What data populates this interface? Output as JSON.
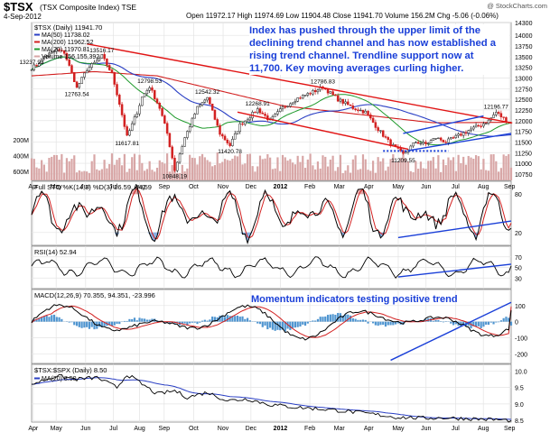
{
  "header": {
    "symbol": "$TSX",
    "name": "(TSX Composite Index) TSE",
    "date": "4-Sep-2012",
    "watermark": "@ StockCharts.com",
    "quote": "Open 11972.17  High 11974.69  Low 11904.48  Close 11941.70  Volume 156.2M  Chg -5.06 (-0.06%)"
  },
  "colors": {
    "up": "#1a1a1a",
    "down": "#d22020",
    "ma50": "#2a3fc4",
    "ma200": "#d22020",
    "ma20": "#1f9a2c",
    "annotation": "#1a3fd8",
    "volume": "#d8a6a6",
    "grid": "#e3e3e3",
    "panel_bg": "#ffffff",
    "fill_above": "#d36a6a",
    "fill_below": "#3f7fd6",
    "macd_hist": "#4f95d0"
  },
  "chart_data": [
    {
      "id": "price",
      "type": "candlestick",
      "ylim": [
        10600,
        14300
      ],
      "yticks": [
        "14300",
        "14000",
        "13750",
        "13500",
        "13250",
        "13000",
        "12750",
        "12500",
        "12250",
        "12000",
        "11750",
        "11500",
        "11250",
        "11000",
        "10750"
      ],
      "title": "$TSX (Daily) 11941.70",
      "legend": [
        "MA(50) 11738.02",
        "MA(200) 11962.52",
        "MA(20) 11970.81",
        "Volume 156,155,392"
      ],
      "waypoints": [
        [
          0,
          13237.93
        ],
        [
          2,
          13300
        ],
        [
          5,
          13500
        ],
        [
          10,
          13650
        ],
        [
          13,
          13600
        ],
        [
          17,
          12950
        ],
        [
          18,
          12763.54
        ],
        [
          22,
          13200
        ],
        [
          26,
          13400
        ],
        [
          28,
          13516.17
        ],
        [
          32,
          13100
        ],
        [
          35,
          12400
        ],
        [
          38,
          11617.81
        ],
        [
          42,
          12200
        ],
        [
          44,
          12550
        ],
        [
          47,
          12798.53
        ],
        [
          51,
          12300
        ],
        [
          54,
          11700
        ],
        [
          57,
          10848.19
        ],
        [
          61,
          11600
        ],
        [
          66,
          12300
        ],
        [
          70,
          12542.32
        ],
        [
          75,
          11700
        ],
        [
          79,
          11420.78
        ],
        [
          83,
          11900
        ],
        [
          87,
          12100
        ],
        [
          90,
          12268.91
        ],
        [
          95,
          12000
        ],
        [
          100,
          12300
        ],
        [
          105,
          12500
        ],
        [
          109,
          12600
        ],
        [
          113,
          12700
        ],
        [
          116,
          12786.83
        ],
        [
          122,
          12500
        ],
        [
          128,
          12300
        ],
        [
          133,
          12200
        ],
        [
          138,
          11800
        ],
        [
          143,
          11450
        ],
        [
          148,
          11209.55
        ],
        [
          153,
          11500
        ],
        [
          157,
          11450
        ],
        [
          161,
          11600
        ],
        [
          165,
          11500
        ],
        [
          170,
          11650
        ],
        [
          175,
          11800
        ],
        [
          179,
          11900
        ],
        [
          182,
          12000
        ],
        [
          185,
          12196.77
        ],
        [
          188,
          12050
        ],
        [
          191,
          11941.7
        ]
      ],
      "price_labels": [
        {
          "text": "13237.93",
          "i": 0,
          "v": 13237.93,
          "pos": "above"
        },
        {
          "text": "13516.17",
          "i": 28,
          "v": 13516.17,
          "pos": "above"
        },
        {
          "text": "12763.54",
          "i": 18,
          "v": 12763.54,
          "pos": "below"
        },
        {
          "text": "12798.53",
          "i": 47,
          "v": 12798.53,
          "pos": "above"
        },
        {
          "text": "11617.81",
          "i": 38,
          "v": 11617.81,
          "pos": "below"
        },
        {
          "text": "12542.32",
          "i": 70,
          "v": 12542.32,
          "pos": "above"
        },
        {
          "text": "10848.19",
          "i": 57,
          "v": 10848.19,
          "pos": "below"
        },
        {
          "text": "12268.91",
          "i": 90,
          "v": 12268.91,
          "pos": "above"
        },
        {
          "text": "11420.78",
          "i": 79,
          "v": 11420.78,
          "pos": "below"
        },
        {
          "text": "12786.83",
          "i": 116,
          "v": 12786.83,
          "pos": "above"
        },
        {
          "text": "11209.55",
          "i": 148,
          "v": 11209.55,
          "pos": "below"
        },
        {
          "text": "12196.77",
          "i": 185,
          "v": 12196.77,
          "pos": "above"
        }
      ],
      "trendlines": [
        {
          "name": "declining-channel-upper",
          "from": [
            22,
            13800
          ],
          "to": [
            191,
            11950
          ],
          "color": "#e11414"
        },
        {
          "name": "declining-channel-lower",
          "from": [
            82,
            12200
          ],
          "to": [
            150,
            11330
          ],
          "color": "#e11414"
        },
        {
          "name": "rising-channel-upper",
          "from": [
            148,
            11700
          ],
          "to": [
            180,
            12110
          ],
          "color": "#1a3fd8"
        },
        {
          "name": "rising-channel-lower",
          "from": [
            150,
            11300
          ],
          "to": [
            191,
            11700
          ],
          "color": "#1a3fd8"
        },
        {
          "name": "support-dotted",
          "from": [
            140,
            11290
          ],
          "to": [
            166,
            11290
          ],
          "color": "#1a3fd8",
          "dashed": true
        }
      ],
      "volume_axis": [
        "600M",
        "400M",
        "200M"
      ],
      "annotation": "Index has pushed through the upper limit of the declining trend channel and has now established a rising trend channel.   Trendline support now at 11,700.   Key moving averages curling higher."
    },
    {
      "id": "sto",
      "type": "line",
      "title": "Full STO %K(14,3) %D(3) 26.59, 34.59",
      "ylim": [
        0,
        100
      ],
      "yticks": [
        "80",
        "20"
      ],
      "levels": [
        20,
        80
      ],
      "k_last": 26.59,
      "d_last": 34.59,
      "trendline": {
        "from": [
          146,
          12
        ],
        "to": [
          191,
          38
        ]
      }
    },
    {
      "id": "rsi",
      "type": "line",
      "title": "RSI(14) 52.94",
      "ylim": [
        10,
        90
      ],
      "yticks": [
        "70",
        "50",
        "30"
      ],
      "levels": [
        30,
        70
      ],
      "last": 52.94,
      "trendline": {
        "from": [
          146,
          32
        ],
        "to": [
          191,
          56
        ]
      }
    },
    {
      "id": "macd",
      "type": "line",
      "title": "MACD(12,26,9) 70.355, 94.351, -23.996",
      "ylim": [
        -260,
        200
      ],
      "yticks": [
        "100",
        "0",
        "-100",
        "-200"
      ],
      "macd_last": 70.355,
      "signal_last": 94.351,
      "hist_last": -23.996,
      "annotation": "Momentum indicators testing positive trend",
      "trendline": {
        "from": [
          143,
          -240
        ],
        "to": [
          191,
          120
        ]
      }
    },
    {
      "id": "ratio",
      "type": "line",
      "title": "$TSX:$SPX (Daily) 8.50",
      "legend": "MA(20) 8.50",
      "ylim": [
        8.45,
        10.2
      ],
      "yticks": [
        "10.0",
        "9.5",
        "9.0",
        "8.5"
      ],
      "waypoints": [
        [
          0,
          9.6
        ],
        [
          10,
          9.85
        ],
        [
          18,
          9.75
        ],
        [
          26,
          9.8
        ],
        [
          34,
          9.5
        ],
        [
          38,
          9.9
        ],
        [
          44,
          9.6
        ],
        [
          50,
          9.3
        ],
        [
          57,
          9.4
        ],
        [
          62,
          9.2
        ],
        [
          70,
          9.35
        ],
        [
          78,
          9.1
        ],
        [
          86,
          9.15
        ],
        [
          95,
          8.98
        ],
        [
          105,
          8.9
        ],
        [
          115,
          8.85
        ],
        [
          125,
          8.78
        ],
        [
          135,
          8.7
        ],
        [
          145,
          8.6
        ],
        [
          155,
          8.57
        ],
        [
          165,
          8.58
        ],
        [
          175,
          8.55
        ],
        [
          183,
          8.53
        ],
        [
          191,
          8.5
        ]
      ]
    }
  ],
  "x_axis": {
    "n_points": 192,
    "labels": [
      {
        "text": "Apr",
        "i": 1
      },
      {
        "text": "May",
        "i": 15
      },
      {
        "text": "Jun",
        "i": 33
      },
      {
        "text": "Jul",
        "i": 50
      },
      {
        "text": "Aug",
        "i": 66
      },
      {
        "text": "Sep",
        "i": 81
      },
      {
        "text": "Oct",
        "i": 99
      },
      {
        "text": "Nov",
        "i": 117
      },
      {
        "text": "Dec",
        "i": 134
      },
      {
        "text": "2012",
        "i": 152,
        "bold": true
      },
      {
        "text": "Feb",
        "i": 170
      },
      {
        "text": "Mar",
        "i": 188
      },
      {
        "text": "Apr",
        "i": 206
      },
      {
        "text": "May",
        "i": 224
      },
      {
        "text": "Jun",
        "i": 241
      },
      {
        "text": "Jul",
        "i": 259
      },
      {
        "text": "Aug",
        "i": 276
      },
      {
        "text": "Sep",
        "i": 292
      }
    ],
    "scale_max": 293
  }
}
